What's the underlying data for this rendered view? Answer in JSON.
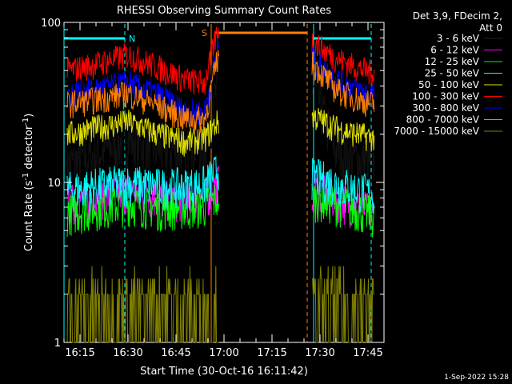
{
  "chart_data": {
    "type": "line",
    "title": "RHESSI Observing Summary Count Rates",
    "xlabel": "Start Time (30-Oct-16 16:11:42)",
    "ylabel_main": "Count Rate (s",
    "ylabel_sup1": "-1",
    "ylabel_mid": " detector",
    "ylabel_sup2": "-1",
    "ylabel_end": ")",
    "y_scale": "log",
    "ylim": [
      1,
      100
    ],
    "y_ticks": [
      "1",
      "10",
      "100"
    ],
    "xlim": [
      "16:10",
      "17:50"
    ],
    "x_ticks": [
      "16:15",
      "16:30",
      "16:45",
      "17:00",
      "17:15",
      "17:30",
      "17:45"
    ],
    "legend_header": [
      "Det 3,9, FDecim 2,",
      "Att 0"
    ],
    "footer_date": "1-Sep-2022 15:28",
    "annotations": {
      "night_label": "N",
      "saa_label": "S",
      "night_intervals": [
        [
          "16:10",
          "16:29"
        ],
        [
          "17:28",
          "17:46"
        ]
      ],
      "saa_interval": [
        "16:56",
        "17:26"
      ]
    },
    "series": [
      {
        "name": "3 - 6 keV",
        "color": "#000000",
        "x": [
          "16:11",
          "16:20",
          "16:30",
          "16:40",
          "16:48",
          "16:54",
          "16:58",
          "17:28",
          "17:35",
          "17:42",
          "17:47"
        ],
        "y": [
          13,
          15,
          19,
          16,
          16,
          17,
          40,
          40,
          16,
          14,
          13
        ]
      },
      {
        "name": "6 - 12 keV",
        "color": "#ff00ff",
        "x": [
          "16:11",
          "16:20",
          "16:30",
          "16:40",
          "16:48",
          "16:54",
          "16:58",
          "17:28",
          "17:35",
          "17:42",
          "17:47"
        ],
        "y": [
          7.5,
          8,
          9,
          8,
          7.8,
          8,
          10,
          9,
          8,
          7,
          6.5
        ]
      },
      {
        "name": "12 - 25 keV",
        "color": "#00ff00",
        "x": [
          "16:11",
          "16:20",
          "16:30",
          "16:40",
          "16:48",
          "16:54",
          "16:58",
          "17:28",
          "17:35",
          "17:42",
          "17:47"
        ],
        "y": [
          6.5,
          7,
          7.5,
          7,
          7,
          7.2,
          8,
          8,
          7.5,
          6.8,
          6.2
        ]
      },
      {
        "name": "25 - 50 keV",
        "color": "#00ffff",
        "x": [
          "16:11",
          "16:20",
          "16:30",
          "16:40",
          "16:48",
          "16:54",
          "16:58",
          "17:28",
          "17:35",
          "17:42",
          "17:47"
        ],
        "y": [
          9,
          9.5,
          10,
          9.5,
          9.5,
          9.8,
          12,
          11,
          10,
          9,
          8.5
        ]
      },
      {
        "name": "50 - 100 keV",
        "color": "#e0e000",
        "x": [
          "16:11",
          "16:20",
          "16:30",
          "16:40",
          "16:48",
          "16:54",
          "16:58",
          "17:28",
          "17:35",
          "17:42",
          "17:47"
        ],
        "y": [
          20,
          22,
          24,
          20,
          18,
          19,
          24,
          26,
          22,
          20,
          19
        ]
      },
      {
        "name": "100 - 300 keV",
        "color": "#ff0000",
        "x": [
          "16:11",
          "16:20",
          "16:30",
          "16:40",
          "16:48",
          "16:54",
          "16:58",
          "17:28",
          "17:35",
          "17:42",
          "17:47"
        ],
        "y": [
          50,
          55,
          63,
          52,
          44,
          42,
          90,
          75,
          60,
          52,
          48
        ]
      },
      {
        "name": "300 - 800 keV",
        "color": "#0000ff",
        "x": [
          "16:11",
          "16:20",
          "16:30",
          "16:40",
          "16:48",
          "16:54",
          "16:58",
          "17:28",
          "17:35",
          "17:42",
          "17:47"
        ],
        "y": [
          36,
          38,
          42,
          35,
          28,
          28,
          70,
          58,
          44,
          38,
          35
        ]
      },
      {
        "name": "800 - 7000 keV",
        "color": "#ff8000",
        "x": [
          "16:11",
          "16:20",
          "16:30",
          "16:40",
          "16:48",
          "16:54",
          "16:58",
          "17:28",
          "17:35",
          "17:42",
          "17:47"
        ],
        "y": [
          31,
          33,
          36,
          30,
          25,
          25,
          60,
          55,
          38,
          33,
          31
        ]
      },
      {
        "name": "7000 - 15000 keV",
        "color": "#808000",
        "x": [
          "16:11",
          "16:20",
          "16:30",
          "16:40",
          "16:48",
          "16:54",
          "16:58",
          "17:28",
          "17:35",
          "17:42",
          "17:47"
        ],
        "y": [
          1.8,
          1.9,
          2,
          1.9,
          1.9,
          1.9,
          2.5,
          1.9,
          1.9,
          1.8,
          1.8
        ]
      }
    ]
  }
}
